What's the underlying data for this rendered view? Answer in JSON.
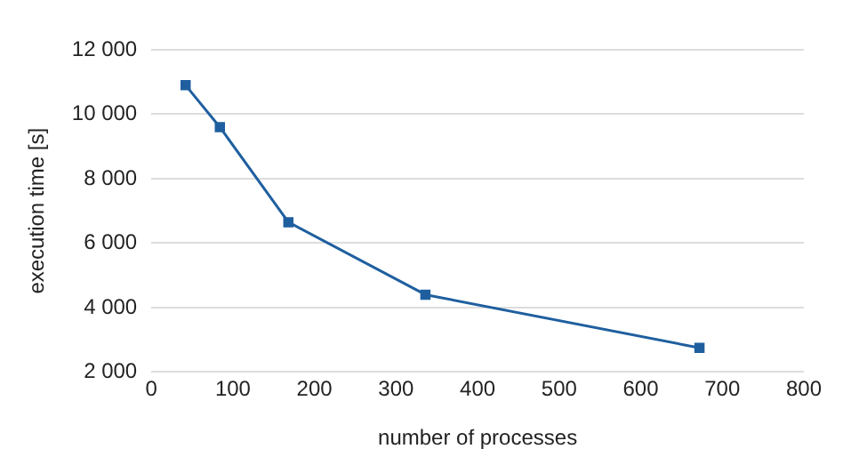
{
  "chart_data": {
    "type": "line",
    "xlabel": "number of processes",
    "ylabel": "execution time [s]",
    "x": [
      42,
      84,
      168,
      336,
      672
    ],
    "series": [
      {
        "color": "#1f5f9f",
        "values": [
          10900,
          9600,
          6650,
          4400,
          2750
        ]
      }
    ],
    "xlim": [
      0,
      800
    ],
    "xticks": [
      0,
      100,
      200,
      300,
      400,
      500,
      600,
      700,
      800
    ],
    "ylim": [
      2000,
      12000
    ],
    "yticks": [
      {
        "value": 2000,
        "label": "2 000"
      },
      {
        "value": 4000,
        "label": "4 000"
      },
      {
        "value": 6000,
        "label": "6 000"
      },
      {
        "value": 8000,
        "label": "8 000"
      },
      {
        "value": 10000,
        "label": "10 000"
      },
      {
        "value": 12000,
        "label": "12 000"
      }
    ],
    "grid": "y",
    "legend": false,
    "marker": "square",
    "line_style": "solid"
  }
}
